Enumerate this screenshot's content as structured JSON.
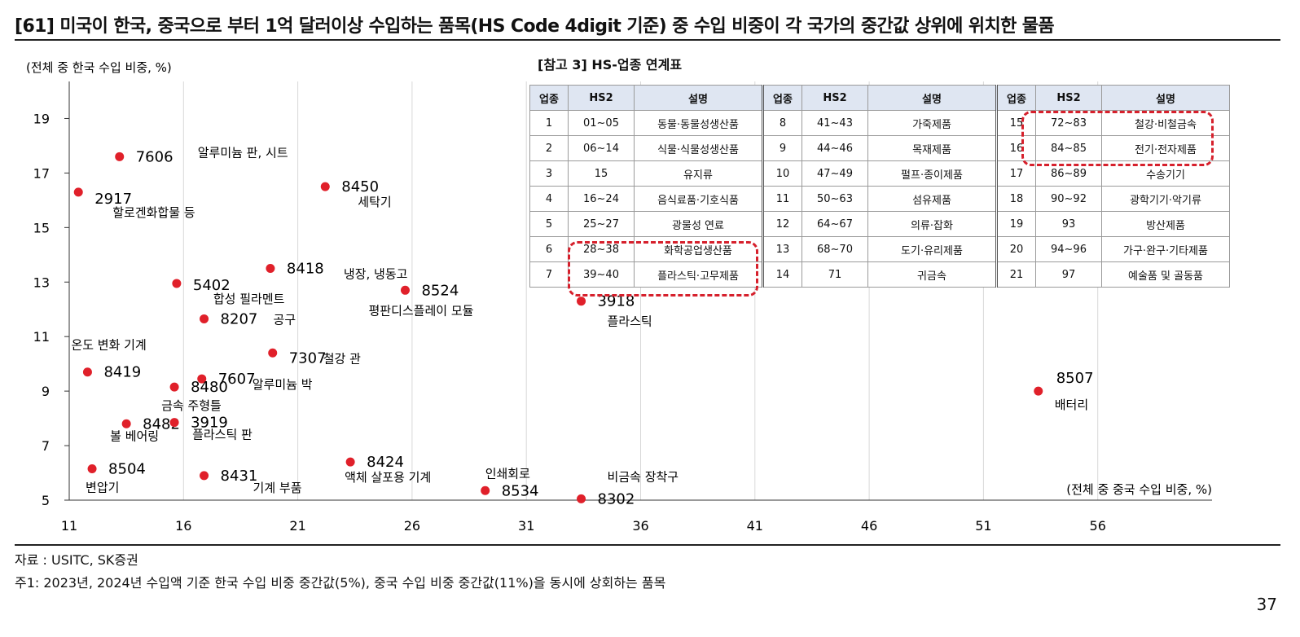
{
  "title": "[61] 미국이 한국, 중국으로 부터 1억 달러이상 수입하는 품목(HS Code 4digit 기준) 중 수입 비중이 각 국가의 중간값 상위에 위치한 물품",
  "source": "자료 : USITC, SK증권",
  "note": "주1: 2023년, 2024년 수입액 기준 한국 수입 비중 중간값(5%), 중국 수입 비중 중간값(11%)을 동시에 상회하는 품목",
  "page_number": "37",
  "chart_data": {
    "type": "scatter",
    "ylabel": "(전체 중 한국 수입 비중, %)",
    "xlabel": "(전체 중 중국 수입 비중, %)",
    "xlim": [
      11,
      61
    ],
    "ylim": [
      5,
      20
    ],
    "xticks": [
      11,
      16,
      21,
      26,
      31,
      36,
      41,
      46,
      51,
      56
    ],
    "yticks": [
      5,
      7,
      9,
      11,
      13,
      15,
      17,
      19
    ],
    "grid": "vertical",
    "marker_color": "#e0202a",
    "points": [
      {
        "code": "7606",
        "name": "알루미늄 판, 시트",
        "x": 13.2,
        "y": 17.6
      },
      {
        "code": "2917",
        "name": "할로겐화합물 등",
        "x": 11.4,
        "y": 16.3
      },
      {
        "code": "8450",
        "name": "세탁기",
        "x": 22.2,
        "y": 16.5
      },
      {
        "code": "8418",
        "name": "냉장, 냉동고",
        "x": 19.8,
        "y": 13.5
      },
      {
        "code": "5402",
        "name": "합성 필라멘트",
        "x": 15.7,
        "y": 12.95
      },
      {
        "code": "8524",
        "name": "평판디스플레이 모듈",
        "x": 25.7,
        "y": 12.7
      },
      {
        "code": "3918",
        "name": "플라스틱",
        "x": 33.4,
        "y": 12.3
      },
      {
        "code": "8207",
        "name": "공구",
        "x": 16.9,
        "y": 11.65
      },
      {
        "code": "7307",
        "name": "철강 관",
        "x": 19.9,
        "y": 10.4
      },
      {
        "code": "8419",
        "name": "온도 변화 기계",
        "x": 11.8,
        "y": 9.7
      },
      {
        "code": "7607",
        "name": "알루미늄 박",
        "x": 16.8,
        "y": 9.45
      },
      {
        "code": "8480",
        "name": "금속 주형틀",
        "x": 15.6,
        "y": 9.15
      },
      {
        "code": "8507",
        "name": "배터리",
        "x": 53.4,
        "y": 9.0
      },
      {
        "code": "8482",
        "name": "볼 베어링",
        "x": 13.5,
        "y": 7.8
      },
      {
        "code": "3919",
        "name": "플라스틱 판",
        "x": 15.6,
        "y": 7.85
      },
      {
        "code": "8504",
        "name": "변압기",
        "x": 12.0,
        "y": 6.15
      },
      {
        "code": "8424",
        "name": "액체 살포용 기계",
        "x": 23.3,
        "y": 6.4
      },
      {
        "code": "8431",
        "name": "기계 부품",
        "x": 16.9,
        "y": 5.9
      },
      {
        "code": "8534",
        "name": "인쇄회로",
        "x": 29.2,
        "y": 5.35
      },
      {
        "code": "8302",
        "name": "비금속 장착구",
        "x": 33.4,
        "y": 5.05
      }
    ]
  },
  "reference_table": {
    "title": "[참고 3] HS-업종 연계표",
    "headers": [
      "업종",
      "HS2",
      "설명"
    ],
    "groups": [
      [
        [
          "1",
          "01~05",
          "동물·동물성생산품"
        ],
        [
          "2",
          "06~14",
          "식물·식물성생산품"
        ],
        [
          "3",
          "15",
          "유지류"
        ],
        [
          "4",
          "16~24",
          "음식료품·기호식품"
        ],
        [
          "5",
          "25~27",
          "광물성 연료"
        ],
        [
          "6",
          "28~38",
          "화학공업생산품"
        ],
        [
          "7",
          "39~40",
          "플라스틱·고무제품"
        ]
      ],
      [
        [
          "8",
          "41~43",
          "가죽제품"
        ],
        [
          "9",
          "44~46",
          "목재제품"
        ],
        [
          "10",
          "47~49",
          "펄프·종이제품"
        ],
        [
          "11",
          "50~63",
          "섬유제품"
        ],
        [
          "12",
          "64~67",
          "의류·잡화"
        ],
        [
          "13",
          "68~70",
          "도기·유리제품"
        ],
        [
          "14",
          "71",
          "귀금속"
        ]
      ],
      [
        [
          "15",
          "72~83",
          "철강·비철금속"
        ],
        [
          "16",
          "84~85",
          "전기·전자제품"
        ],
        [
          "17",
          "86~89",
          "수송기기"
        ],
        [
          "18",
          "90~92",
          "광학기기·악기류"
        ],
        [
          "19",
          "93",
          "방산제품"
        ],
        [
          "20",
          "94~96",
          "가구·완구·기타제품"
        ],
        [
          "21",
          "97",
          "예술품 및 골동품"
        ]
      ]
    ]
  }
}
